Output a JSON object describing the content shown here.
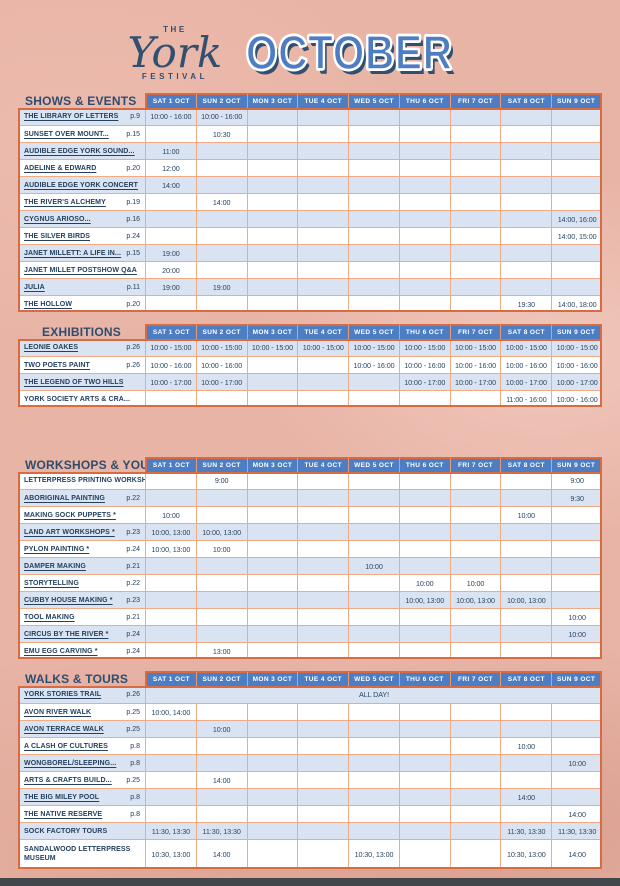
{
  "header": {
    "logo": {
      "the": "THE",
      "york": "York",
      "festival": "FESTIVAL"
    },
    "month": "OCTOBER"
  },
  "colors": {
    "background": "#e8b4a6",
    "accent_orange_border": "#d96b43",
    "light_orange_grid": "#f0ab85",
    "header_blue": "#4d7ec3",
    "row_light_blue": "#d9e3f1",
    "navy_text": "#2d4d70",
    "month_blue": "#4e7dc1",
    "bottom_bar": "#42474c"
  },
  "days": [
    "SAT 1 OCT",
    "SUN 2 OCT",
    "MON 3 OCT",
    "TUE 4 OCT",
    "WED 5 OCT",
    "THU 6 OCT",
    "FRI 7 OCT",
    "SAT 8 OCT",
    "SUN 9 OCT"
  ],
  "sections": [
    {
      "title": "SHOWS & EVENTS",
      "rows": [
        {
          "name": "THE LIBRARY OF LETTERS",
          "page": "p.9",
          "link": true,
          "times": [
            "10:00 - 16:00",
            "10:00 - 16:00",
            "",
            "",
            "",
            "",
            "",
            "",
            ""
          ]
        },
        {
          "name": "SUNSET OVER MOUNT...",
          "page": "p.15",
          "link": true,
          "times": [
            "",
            "10:30",
            "",
            "",
            "",
            "",
            "",
            "",
            ""
          ]
        },
        {
          "name": "AUDIBLE EDGE YORK SOUND...",
          "page": "",
          "link": true,
          "times": [
            "11:00",
            "",
            "",
            "",
            "",
            "",
            "",
            "",
            ""
          ]
        },
        {
          "name": "ADELINE & EDWARD",
          "page": "p.20",
          "link": true,
          "times": [
            "12:00",
            "",
            "",
            "",
            "",
            "",
            "",
            "",
            ""
          ]
        },
        {
          "name": "AUDIBLE EDGE YORK CONCERT",
          "page": "",
          "link": true,
          "times": [
            "14:00",
            "",
            "",
            "",
            "",
            "",
            "",
            "",
            ""
          ]
        },
        {
          "name": "THE RIVER'S ALCHEMY",
          "page": "p.19",
          "link": true,
          "times": [
            "",
            "14:00",
            "",
            "",
            "",
            "",
            "",
            "",
            ""
          ]
        },
        {
          "name": "CYGNUS ARIOSO...",
          "page": "p.16",
          "link": true,
          "times": [
            "",
            "",
            "",
            "",
            "",
            "",
            "",
            "",
            "14:00, 16:00"
          ]
        },
        {
          "name": "THE SILVER BIRDS",
          "page": "p.24",
          "link": true,
          "times": [
            "",
            "",
            "",
            "",
            "",
            "",
            "",
            "",
            "14:00, 15:00"
          ]
        },
        {
          "name": "JANET MILLETT: A LIFE IN...",
          "page": "p.15",
          "link": true,
          "times": [
            "19:00",
            "",
            "",
            "",
            "",
            "",
            "",
            "",
            ""
          ]
        },
        {
          "name": "JANET MILLET POSTSHOW Q&A",
          "page": "",
          "link": true,
          "times": [
            "20:00",
            "",
            "",
            "",
            "",
            "",
            "",
            "",
            ""
          ]
        },
        {
          "name": "JULIA",
          "page": "p.11",
          "link": true,
          "times": [
            "19:00",
            "19:00",
            "",
            "",
            "",
            "",
            "",
            "",
            ""
          ]
        },
        {
          "name": "THE HOLLOW",
          "page": "p.20",
          "link": true,
          "times": [
            "",
            "",
            "",
            "",
            "",
            "",
            "",
            "19:30",
            "14:00, 18:00"
          ]
        }
      ]
    },
    {
      "title": "EXHIBITIONS",
      "rows": [
        {
          "name": "LEONIE OAKES",
          "page": "p.26",
          "link": true,
          "times": [
            "10:00 - 15:00",
            "10:00 - 15:00",
            "10:00 - 15:00",
            "10:00 - 15:00",
            "10:00 - 15:00",
            "10:00 - 15:00",
            "10:00 - 15:00",
            "10:00 - 15:00",
            "10:00 - 15:00"
          ]
        },
        {
          "name": "TWO POETS PAINT",
          "page": "p.26",
          "link": true,
          "times": [
            "10:00 - 16:00",
            "10:00 - 16:00",
            "",
            "",
            "10:00 - 16:00",
            "10:00 - 16:00",
            "10:00 - 16:00",
            "10:00 - 16:00",
            "10:00 - 16:00"
          ]
        },
        {
          "name": "THE LEGEND OF TWO HILLS",
          "page": "",
          "link": true,
          "times": [
            "10:00 - 17:00",
            "10:00 - 17:00",
            "",
            "",
            "",
            "10:00 - 17:00",
            "10:00 - 17:00",
            "10:00 - 17:00",
            "10:00 - 17:00"
          ]
        },
        {
          "name": "YORK SOCIETY ARTS & CRA...",
          "page": "",
          "link": false,
          "times": [
            "",
            "",
            "",
            "",
            "",
            "",
            "",
            "11:00 - 16:00",
            "10:00 - 16:00"
          ]
        }
      ]
    },
    {
      "title": "WORKSHOPS & YOUTH*",
      "rows": [
        {
          "name": "LETTERPRESS PRINTING WORKSHOP",
          "page": "",
          "link": false,
          "times": [
            "",
            "9:00",
            "",
            "",
            "",
            "",
            "",
            "",
            "9:00"
          ]
        },
        {
          "name": "ABORIGINAL PAINTING",
          "page": "p.22",
          "link": true,
          "times": [
            "",
            "",
            "",
            "",
            "",
            "",
            "",
            "",
            "9:30"
          ]
        },
        {
          "name": "MAKING SOCK PUPPETS *",
          "page": "",
          "link": true,
          "times": [
            "10:00",
            "",
            "",
            "",
            "",
            "",
            "",
            "10:00",
            ""
          ]
        },
        {
          "name": "LAND ART WORKSHOPS *",
          "page": "p.23",
          "link": true,
          "times": [
            "10:00, 13:00",
            "10:00, 13:00",
            "",
            "",
            "",
            "",
            "",
            "",
            ""
          ]
        },
        {
          "name": "PYLON PAINTING *",
          "page": "p.24",
          "link": true,
          "times": [
            "10:00, 13:00",
            "10:00",
            "",
            "",
            "",
            "",
            "",
            "",
            ""
          ]
        },
        {
          "name": "DAMPER MAKING",
          "page": "p.21",
          "link": true,
          "times": [
            "",
            "",
            "",
            "",
            "10:00",
            "",
            "",
            "",
            ""
          ]
        },
        {
          "name": "STORYTELLING",
          "page": "p.22",
          "link": true,
          "times": [
            "",
            "",
            "",
            "",
            "",
            "10:00",
            "10:00",
            "",
            ""
          ]
        },
        {
          "name": "CUBBY HOUSE MAKING *",
          "page": "p.23",
          "link": true,
          "times": [
            "",
            "",
            "",
            "",
            "",
            "10:00, 13:00",
            "10:00, 13:00",
            "10:00, 13:00",
            ""
          ]
        },
        {
          "name": "TOOL MAKING",
          "page": "p.21",
          "link": true,
          "times": [
            "",
            "",
            "",
            "",
            "",
            "",
            "",
            "",
            "10:00"
          ]
        },
        {
          "name": "CIRCUS BY THE RIVER *",
          "page": "p.24",
          "link": true,
          "times": [
            "",
            "",
            "",
            "",
            "",
            "",
            "",
            "",
            "10:00"
          ]
        },
        {
          "name": "EMU EGG CARVING *",
          "page": "p.24",
          "link": true,
          "times": [
            "",
            "13:00",
            "",
            "",
            "",
            "",
            "",
            "",
            ""
          ]
        }
      ]
    },
    {
      "title": "WALKS & TOURS",
      "rows": [
        {
          "name": "YORK STORIES TRAIL",
          "page": "p.26",
          "link": true,
          "span_all": "ALL DAY!"
        },
        {
          "name": "AVON RIVER WALK",
          "page": "p.25",
          "link": true,
          "times": [
            "10:00, 14:00",
            "",
            "",
            "",
            "",
            "",
            "",
            "",
            ""
          ]
        },
        {
          "name": "AVON TERRACE WALK",
          "page": "p.25",
          "link": true,
          "times": [
            "",
            "10:00",
            "",
            "",
            "",
            "",
            "",
            "",
            ""
          ]
        },
        {
          "name": "A CLASH OF CULTURES",
          "page": "p.8",
          "link": true,
          "times": [
            "",
            "",
            "",
            "",
            "",
            "",
            "",
            "10:00",
            ""
          ]
        },
        {
          "name": "WONGBOREL/SLEEPING...",
          "page": "p.8",
          "link": true,
          "times": [
            "",
            "",
            "",
            "",
            "",
            "",
            "",
            "",
            "10:00"
          ]
        },
        {
          "name": "ARTS & CRAFTS BUILD...",
          "page": "p.25",
          "link": true,
          "times": [
            "",
            "14:00",
            "",
            "",
            "",
            "",
            "",
            "",
            ""
          ]
        },
        {
          "name": "THE BIG MILEY POOL",
          "page": "p.8",
          "link": true,
          "times": [
            "",
            "",
            "",
            "",
            "",
            "",
            "",
            "14:00",
            ""
          ]
        },
        {
          "name": "THE NATIVE RESERVE",
          "page": "p.8",
          "link": true,
          "times": [
            "",
            "",
            "",
            "",
            "",
            "",
            "",
            "",
            "14:00"
          ]
        },
        {
          "name": "SOCK FACTORY TOURS",
          "page": "",
          "link": false,
          "times": [
            "11:30, 13:30",
            "11:30, 13:30",
            "",
            "",
            "",
            "",
            "",
            "11:30, 13:30",
            "11:30, 13:30"
          ]
        },
        {
          "name": "SANDALWOOD LETTERPRESS MUSEUM",
          "page": "",
          "link": false,
          "tall": true,
          "times": [
            "10:30, 13:00",
            "14:00",
            "",
            "",
            "10:30, 13:00",
            "",
            "",
            "10:30, 13:00",
            "14:00"
          ]
        }
      ]
    }
  ]
}
